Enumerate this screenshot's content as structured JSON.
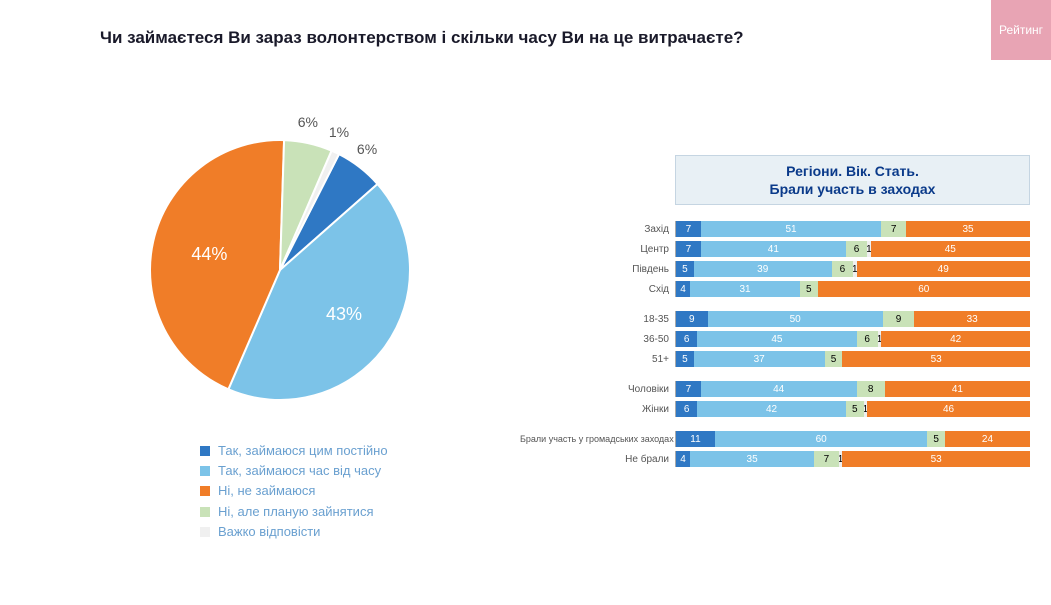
{
  "title": "Чи займаєтеся Ви зараз волонтерством і скільки часу Ви на це витрачаєте?",
  "logo_text": "Рейтинг",
  "colors": {
    "c1": "#2f78c4",
    "c2": "#7cc3e8",
    "c3": "#f07d28",
    "c4": "#c9e2b8",
    "c5": "#f0f0f0",
    "title_bg": "#e8f0f5",
    "title_border": "#c5d5e2",
    "title_text": "#0a3a8a",
    "logo_bg": "#e8a4b4"
  },
  "pie": {
    "type": "pie",
    "slices": [
      {
        "value": 6,
        "label": "6%",
        "color_key": "c1"
      },
      {
        "value": 43,
        "label": "43%",
        "color_key": "c2"
      },
      {
        "value": 44,
        "label": "44%",
        "color_key": "c3"
      },
      {
        "value": 6,
        "label": "6%",
        "color_key": "c4"
      },
      {
        "value": 1,
        "label": "1%",
        "color_key": "c5"
      }
    ],
    "start_angle_deg": -63
  },
  "legend": [
    {
      "color_key": "c1",
      "text": "Так, займаюся цим постійно"
    },
    {
      "color_key": "c2",
      "text": "Так, займаюся час від часу"
    },
    {
      "color_key": "c3",
      "text": "Ні, не займаюся"
    },
    {
      "color_key": "c4",
      "text": "Ні, але планую зайнятися"
    },
    {
      "color_key": "c5",
      "text": "Важко відповісти"
    }
  ],
  "right": {
    "title_line1": "Регіони. Вік. Стать.",
    "title_line2": "Брали участь в заходах",
    "groups": [
      {
        "rows": [
          {
            "label": "Захід",
            "segs": [
              {
                "v": 7,
                "k": "c1"
              },
              {
                "v": 51,
                "k": "c2"
              },
              {
                "v": 7,
                "k": "c4"
              },
              {
                "v": 35,
                "k": "c3"
              }
            ]
          },
          {
            "label": "Центр",
            "segs": [
              {
                "v": 7,
                "k": "c1"
              },
              {
                "v": 41,
                "k": "c2"
              },
              {
                "v": 6,
                "k": "c4"
              },
              {
                "v": 1,
                "k": "c5",
                "show": true
              },
              {
                "v": 45,
                "k": "c3"
              }
            ]
          },
          {
            "label": "Південь",
            "segs": [
              {
                "v": 5,
                "k": "c1"
              },
              {
                "v": 39,
                "k": "c2"
              },
              {
                "v": 6,
                "k": "c4"
              },
              {
                "v": 1,
                "k": "c5",
                "show": true
              },
              {
                "v": 49,
                "k": "c3"
              }
            ]
          },
          {
            "label": "Схід",
            "segs": [
              {
                "v": 4,
                "k": "c1"
              },
              {
                "v": 31,
                "k": "c2"
              },
              {
                "v": 5,
                "k": "c4"
              },
              {
                "v": 60,
                "k": "c3"
              }
            ]
          }
        ]
      },
      {
        "rows": [
          {
            "label": "18-35",
            "segs": [
              {
                "v": 9,
                "k": "c1"
              },
              {
                "v": 50,
                "k": "c2"
              },
              {
                "v": 9,
                "k": "c4"
              },
              {
                "v": 33,
                "k": "c3"
              }
            ]
          },
          {
            "label": "36-50",
            "segs": [
              {
                "v": 6,
                "k": "c1"
              },
              {
                "v": 45,
                "k": "c2"
              },
              {
                "v": 6,
                "k": "c4"
              },
              {
                "v": 1,
                "k": "c5",
                "show": true
              },
              {
                "v": 42,
                "k": "c3"
              }
            ]
          },
          {
            "label": "51+",
            "segs": [
              {
                "v": 5,
                "k": "c1"
              },
              {
                "v": 37,
                "k": "c2"
              },
              {
                "v": 5,
                "k": "c4"
              },
              {
                "v": 53,
                "k": "c3"
              }
            ]
          }
        ]
      },
      {
        "rows": [
          {
            "label": "Чоловіки",
            "segs": [
              {
                "v": 7,
                "k": "c1"
              },
              {
                "v": 44,
                "k": "c2"
              },
              {
                "v": 8,
                "k": "c4"
              },
              {
                "v": 41,
                "k": "c3"
              }
            ]
          },
          {
            "label": "Жінки",
            "segs": [
              {
                "v": 6,
                "k": "c1"
              },
              {
                "v": 42,
                "k": "c2"
              },
              {
                "v": 5,
                "k": "c4"
              },
              {
                "v": 1,
                "k": "c5",
                "show": true
              },
              {
                "v": 46,
                "k": "c3"
              }
            ]
          }
        ]
      },
      {
        "rows": [
          {
            "label": "Брали участь у громадських заходах",
            "long": true,
            "segs": [
              {
                "v": 11,
                "k": "c1"
              },
              {
                "v": 60,
                "k": "c2"
              },
              {
                "v": 5,
                "k": "c4"
              },
              {
                "v": 24,
                "k": "c3"
              }
            ]
          },
          {
            "label": "Не брали",
            "segs": [
              {
                "v": 4,
                "k": "c1"
              },
              {
                "v": 35,
                "k": "c2"
              },
              {
                "v": 7,
                "k": "c4"
              },
              {
                "v": 1,
                "k": "c5",
                "show": true
              },
              {
                "v": 53,
                "k": "c3"
              }
            ]
          }
        ]
      }
    ]
  }
}
